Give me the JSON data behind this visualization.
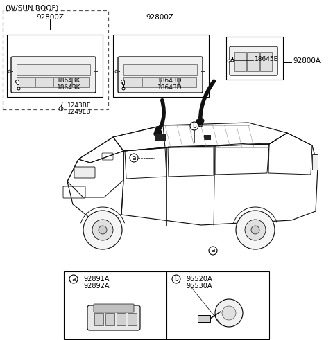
{
  "bg_color": "#ffffff",
  "sunroof_label": "(W/SUN ROOF)",
  "part_92800Z_1": "92800Z",
  "part_92800Z_2": "92800Z",
  "part_92800A": "92800A",
  "part_18643K_1": "18643K",
  "part_18643K_2": "18643K",
  "part_18643D_1": "18643D",
  "part_18643D_2": "18643D",
  "part_18645E": "18645E",
  "part_1243BE": "1243BE",
  "part_1249EB": "1249EB",
  "part_92891A": "92891A",
  "part_92892A": "92892A",
  "part_95520A": "95520A",
  "part_95530A": "95530A",
  "lc": "#000000",
  "fs": 6.5,
  "fm": 7.5
}
